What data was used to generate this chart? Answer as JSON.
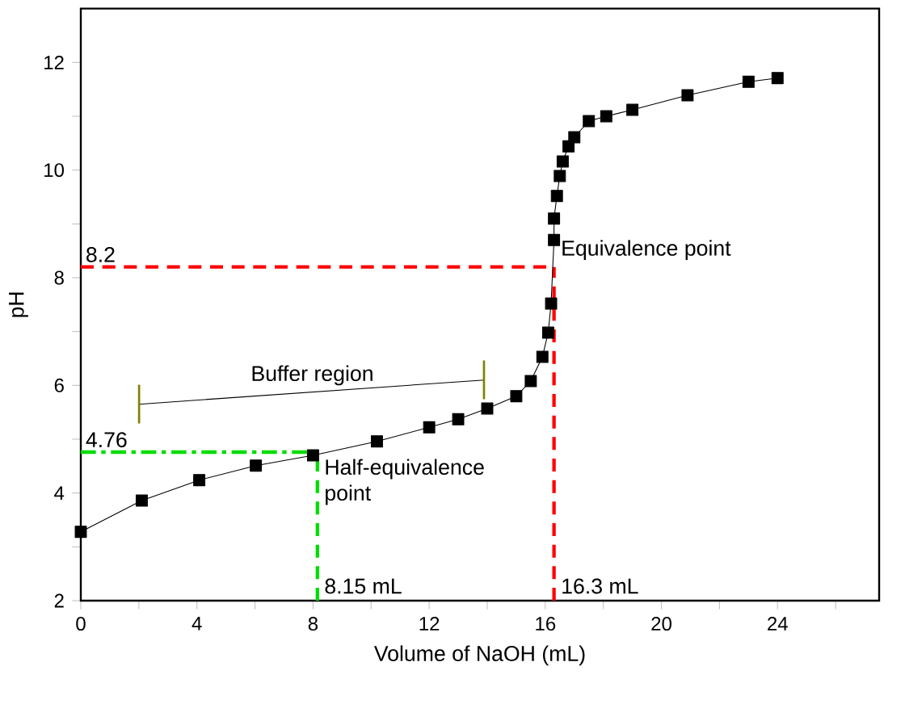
{
  "chart_data": {
    "type": "line",
    "xlabel": "Volume of NaOH (mL)",
    "ylabel": "pH",
    "series": [
      {
        "color": "#000000",
        "marker": "square",
        "x": [
          0,
          2.1,
          4.08,
          6.03,
          8.0,
          10.2,
          12.0,
          13.0,
          14.0,
          15.0,
          15.5,
          15.9,
          16.1,
          16.2,
          16.3,
          16.3,
          16.4,
          16.5,
          16.6,
          16.8,
          17.0,
          17.5,
          18.1,
          19.0,
          20.9,
          23.0,
          24.0
        ],
        "values": [
          3.28,
          3.86,
          4.24,
          4.51,
          4.7,
          4.96,
          5.22,
          5.37,
          5.57,
          5.8,
          6.08,
          6.53,
          6.98,
          7.52,
          8.7,
          9.1,
          9.52,
          9.89,
          10.16,
          10.44,
          10.61,
          10.91,
          11.0,
          11.12,
          11.39,
          11.64,
          11.71
        ]
      },
      {
        "color": "#000000",
        "marker": "none",
        "x": [
          2,
          13.9
        ],
        "values": [
          5.65,
          6.1
        ]
      }
    ],
    "line_style": "solid",
    "xlim": [
      0,
      27.5
    ],
    "ylim": [
      2,
      13
    ],
    "xticks": [
      0,
      {
        "value": 2,
        "label": null
      },
      4,
      {
        "value": 6,
        "label": null
      },
      8,
      {
        "value": 10,
        "label": null
      },
      12,
      {
        "value": 14,
        "label": null
      },
      16,
      {
        "value": 18,
        "label": null
      },
      20,
      {
        "value": 22,
        "label": null
      },
      24,
      {
        "value": 26,
        "label": null
      }
    ],
    "yticks": [
      2,
      {
        "value": 3,
        "label": null
      },
      4,
      {
        "value": 5,
        "label": null
      },
      6,
      {
        "value": 7,
        "label": null
      },
      8,
      {
        "value": 9,
        "label": null
      },
      10,
      {
        "value": 11,
        "label": null
      },
      12
    ],
    "ref_lines": [
      {
        "axis": "y",
        "value": 8.2,
        "label": "8.2",
        "color": "#ff0000",
        "line_style": "dashed"
      },
      {
        "axis": "x",
        "value": 16.3,
        "label": "16.3 mL",
        "color": "#ff0000",
        "line_style": "dashed"
      },
      {
        "axis": "y",
        "value": 4.76,
        "label": "4.76",
        "color": "#00dd00",
        "line_style": "dashdot"
      },
      {
        "axis": "x",
        "value": 8.15,
        "label": "8.15 mL",
        "color": "#00dd00",
        "line_style": "dashed"
      }
    ],
    "annotations": [
      "Buffer region",
      {
        "text": "Equivalence point",
        "x": 16.3,
        "y": 8.2
      },
      {
        "text": "Half-equivalence point",
        "x": 8.15,
        "y": 4.76
      }
    ]
  }
}
